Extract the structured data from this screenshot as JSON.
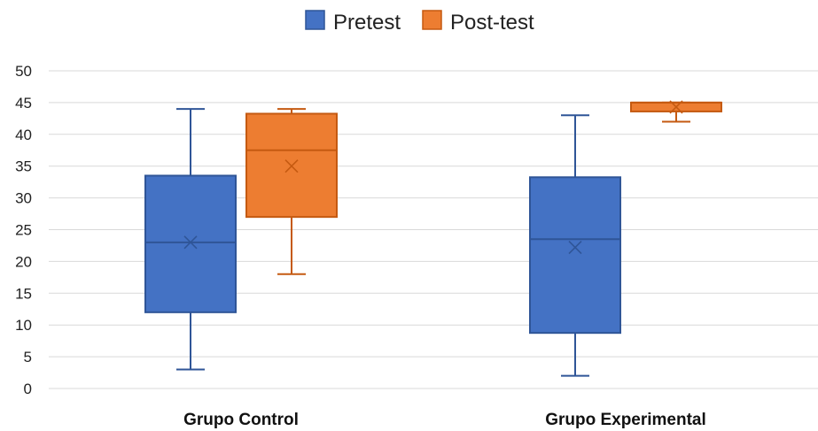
{
  "chart_data": {
    "type": "box",
    "title": "",
    "xlabel": "",
    "ylabel": "",
    "ylim": [
      0,
      50
    ],
    "y_ticks": [
      0,
      5,
      10,
      15,
      20,
      25,
      30,
      35,
      40,
      45,
      50
    ],
    "grid": true,
    "legend_position": "top-center",
    "categories": [
      "Grupo Control",
      "Grupo Experimental"
    ],
    "series": [
      {
        "name": "Pretest",
        "color": "#4472C4",
        "boxes": [
          {
            "min": 3,
            "q1": 12,
            "median": 23,
            "q3": 33.5,
            "max": 44,
            "mean": 23
          },
          {
            "min": 2,
            "q1": 8.75,
            "median": 23.5,
            "q3": 33.25,
            "max": 43,
            "mean": 22.2
          }
        ]
      },
      {
        "name": "Post-test",
        "color": "#ED7D31",
        "boxes": [
          {
            "min": 18,
            "q1": 27,
            "median": 37.5,
            "q3": 43.25,
            "max": 44,
            "mean": 35
          },
          {
            "min": 42,
            "q1": 43.6,
            "median": 45,
            "q3": 45,
            "max": 45,
            "mean": 44.3
          }
        ]
      }
    ]
  }
}
